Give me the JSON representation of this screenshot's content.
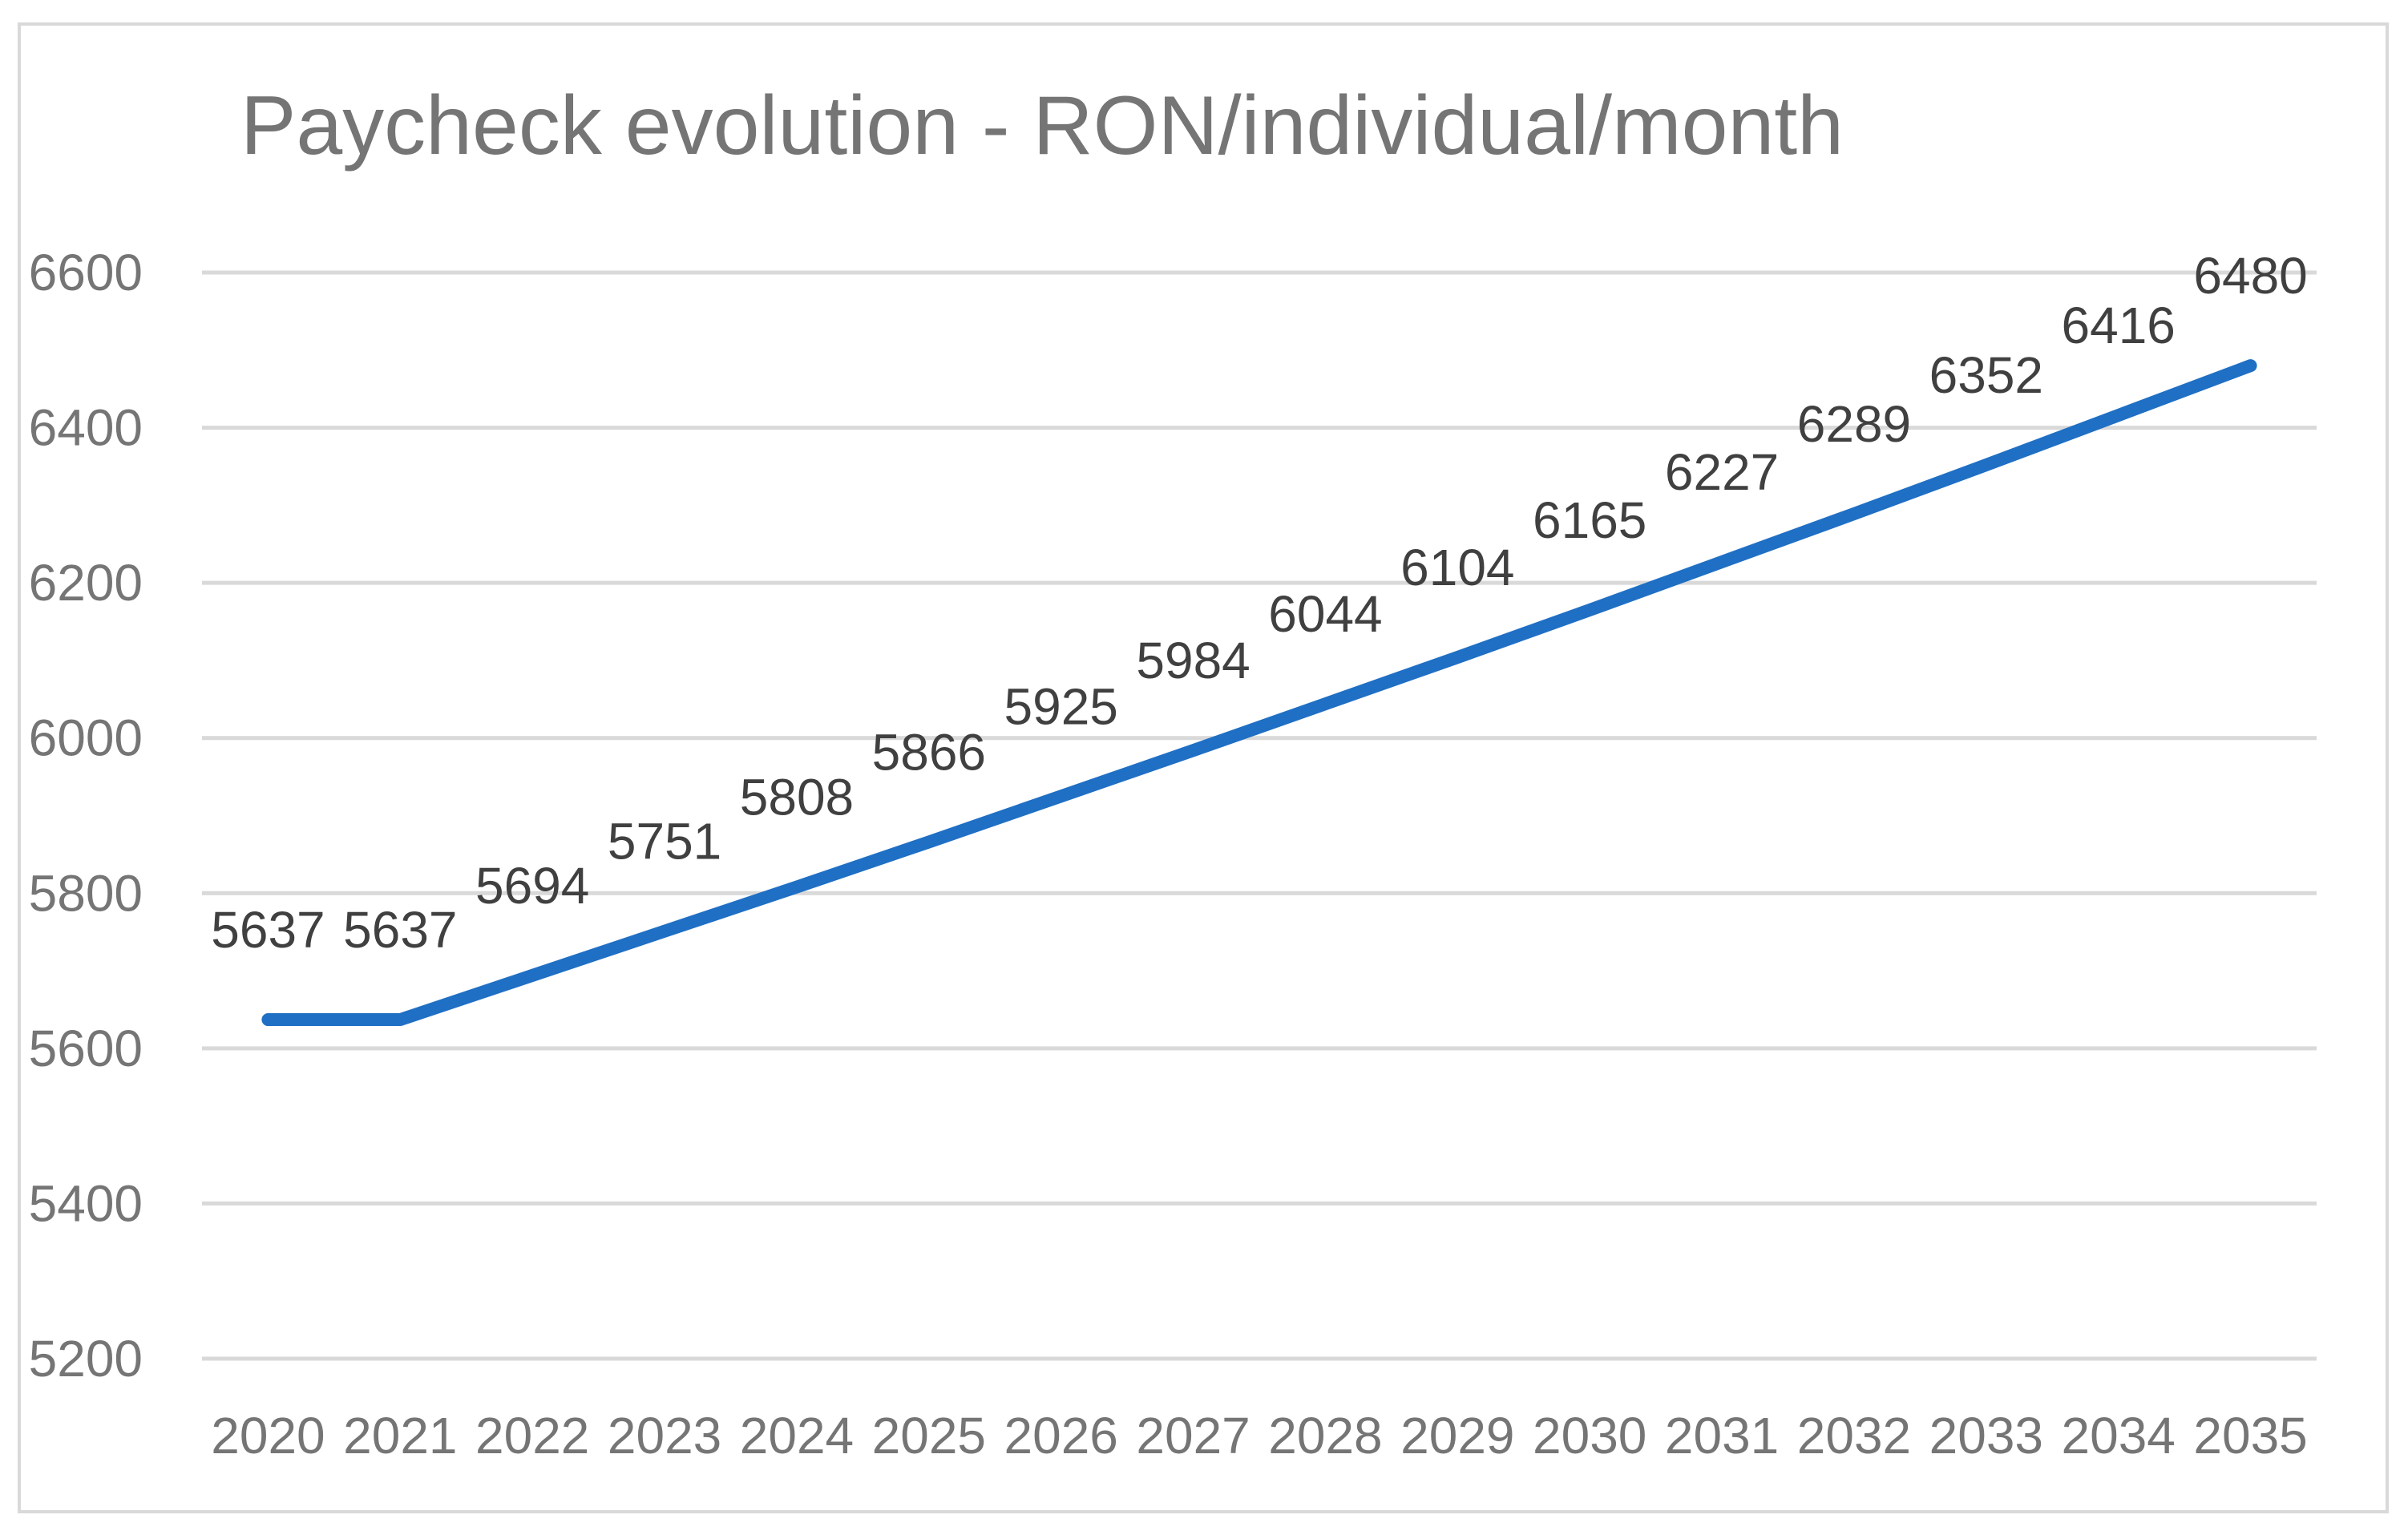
{
  "chart_data": {
    "type": "line",
    "title": "Paycheck evolution - RON/individual/month",
    "xlabel": "",
    "ylabel": "",
    "categories": [
      "2020",
      "2021",
      "2022",
      "2023",
      "2024",
      "2025",
      "2026",
      "2027",
      "2028",
      "2029",
      "2030",
      "2031",
      "2032",
      "2033",
      "2034",
      "2035"
    ],
    "series": [
      {
        "values": [
          5637,
          5637,
          5694,
          5751,
          5808,
          5866,
          5925,
          5984,
          6044,
          6104,
          6165,
          6227,
          6289,
          6352,
          6416,
          6480
        ]
      }
    ],
    "ylim": [
      5200,
      6600
    ],
    "yticks": [
      5200,
      5400,
      5600,
      5800,
      6000,
      6200,
      6400,
      6600
    ],
    "grid": true,
    "legend": "none",
    "data_labels": true,
    "colors": {
      "line": "#1f6fc4",
      "grid": "#d9d9d9",
      "text": "#757575",
      "data_label": "#404040",
      "frame": "#d9d9d9"
    }
  }
}
